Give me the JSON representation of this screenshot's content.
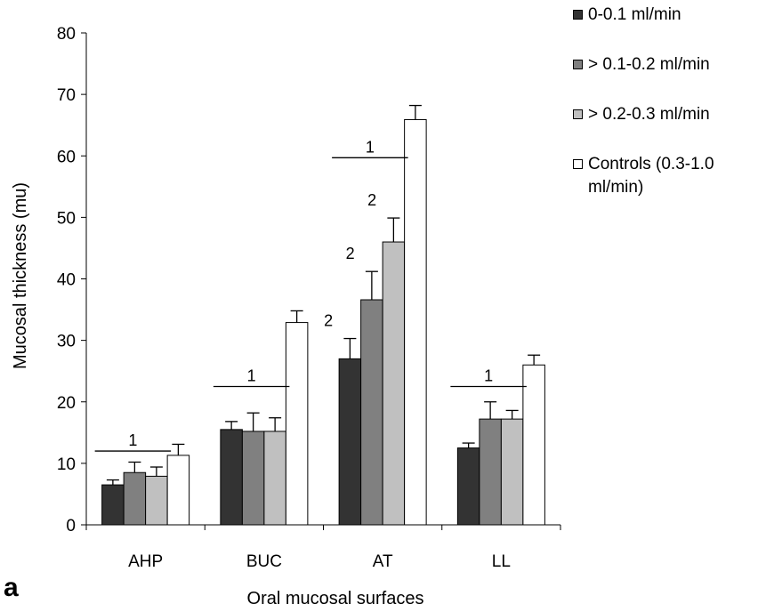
{
  "panel_label": "a",
  "chart_data": {
    "type": "bar",
    "title": "",
    "xlabel": "Oral mucosal surfaces",
    "ylabel": "Mucosal thickness (mu)",
    "ylim": [
      0,
      80
    ],
    "yticks": [
      "0",
      "10",
      "20",
      "30",
      "40",
      "50",
      "60",
      "70",
      "80"
    ],
    "categories": [
      "AHP",
      "BUC",
      "AT",
      "LL"
    ],
    "error_bars": true,
    "grid": false,
    "legend_position": "top-right",
    "series": [
      {
        "name": "0-0.1 ml/min",
        "color": "#333333",
        "values": [
          6.5,
          15.5,
          27,
          12.5
        ],
        "errors": [
          0.8,
          1.3,
          3.3,
          0.8
        ]
      },
      {
        "name": "> 0.1-0.2 ml/min",
        "color": "#808080",
        "values": [
          8.5,
          15.2,
          36.6,
          17.2
        ],
        "errors": [
          1.7,
          3.0,
          4.6,
          2.8
        ]
      },
      {
        "name": "> 0.2-0.3 ml/min",
        "color": "#c0c0c0",
        "values": [
          7.9,
          15.2,
          46,
          17.2
        ],
        "errors": [
          1.5,
          2.2,
          3.9,
          1.4
        ]
      },
      {
        "name": "Controls (0.3-1.0 ml/min)",
        "color": "#ffffff",
        "values": [
          11.3,
          32.9,
          65.9,
          26
        ],
        "errors": [
          1.8,
          1.9,
          2.3,
          1.6
        ]
      }
    ],
    "annotations": [
      {
        "text": "1",
        "type": "bracket",
        "category_index": 0,
        "from_series": 0,
        "to_series": 2,
        "y": 12
      },
      {
        "text": "1",
        "type": "bracket",
        "category_index": 1,
        "from_series": 0,
        "to_series": 2,
        "y": 22.5
      },
      {
        "text": "1",
        "type": "bracket",
        "category_index": 2,
        "from_series": 0,
        "to_series": 2,
        "y": 59.7
      },
      {
        "text": "1",
        "type": "bracket",
        "category_index": 3,
        "from_series": 0,
        "to_series": 2,
        "y": 22.5
      },
      {
        "text": "2",
        "type": "label",
        "category_index": 2,
        "series_index": 0
      },
      {
        "text": "2",
        "type": "label",
        "category_index": 2,
        "series_index": 1
      },
      {
        "text": "2",
        "type": "label",
        "category_index": 2,
        "series_index": 2
      }
    ]
  }
}
